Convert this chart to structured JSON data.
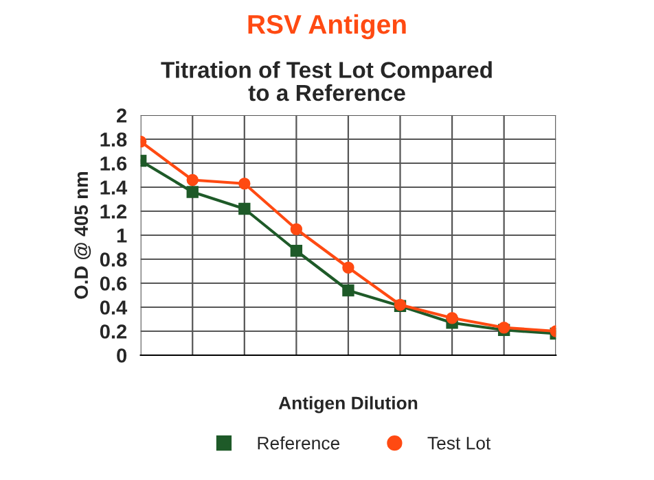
{
  "chart_data": {
    "type": "line",
    "title": "RSV Antigen",
    "subtitle": "Titration of Test Lot Compared\nto a Reference",
    "xlabel": "Antigen Dilution",
    "ylabel": "O.D @ 405 nm",
    "categories": [
      null,
      null,
      null,
      null,
      null,
      null,
      null,
      null,
      null
    ],
    "series": [
      {
        "name": "Reference",
        "color": "#1e5a28",
        "marker": "square",
        "values": [
          1.62,
          1.36,
          1.22,
          0.87,
          0.54,
          0.41,
          0.27,
          0.21,
          0.18
        ]
      },
      {
        "name": "Test Lot",
        "color": "#ff4a12",
        "marker": "circle",
        "values": [
          1.78,
          1.46,
          1.43,
          1.05,
          0.73,
          0.42,
          0.31,
          0.23,
          0.2
        ]
      }
    ],
    "ylim": [
      0,
      2
    ],
    "yticks": [
      0,
      0.2,
      0.4,
      0.6,
      0.8,
      1,
      1.2,
      1.4,
      1.6,
      1.8,
      2
    ],
    "grid": true,
    "legend": "bottom"
  }
}
